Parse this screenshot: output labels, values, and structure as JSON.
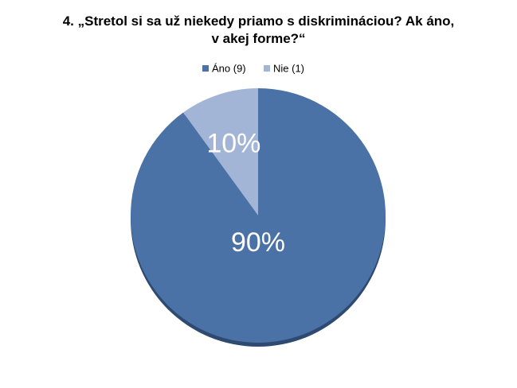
{
  "chart_data": {
    "type": "pie",
    "title": "4. „Stretol si sa už niekedy priamo s diskrimináciou? Ak áno, v akej forme?“",
    "categories": [
      "Áno (9)",
      "Nie (1)"
    ],
    "values": [
      90,
      10
    ],
    "value_labels": [
      "90%",
      "10%"
    ],
    "colors": [
      "#4a72a6",
      "#a3b5d6"
    ],
    "legend": "top"
  }
}
